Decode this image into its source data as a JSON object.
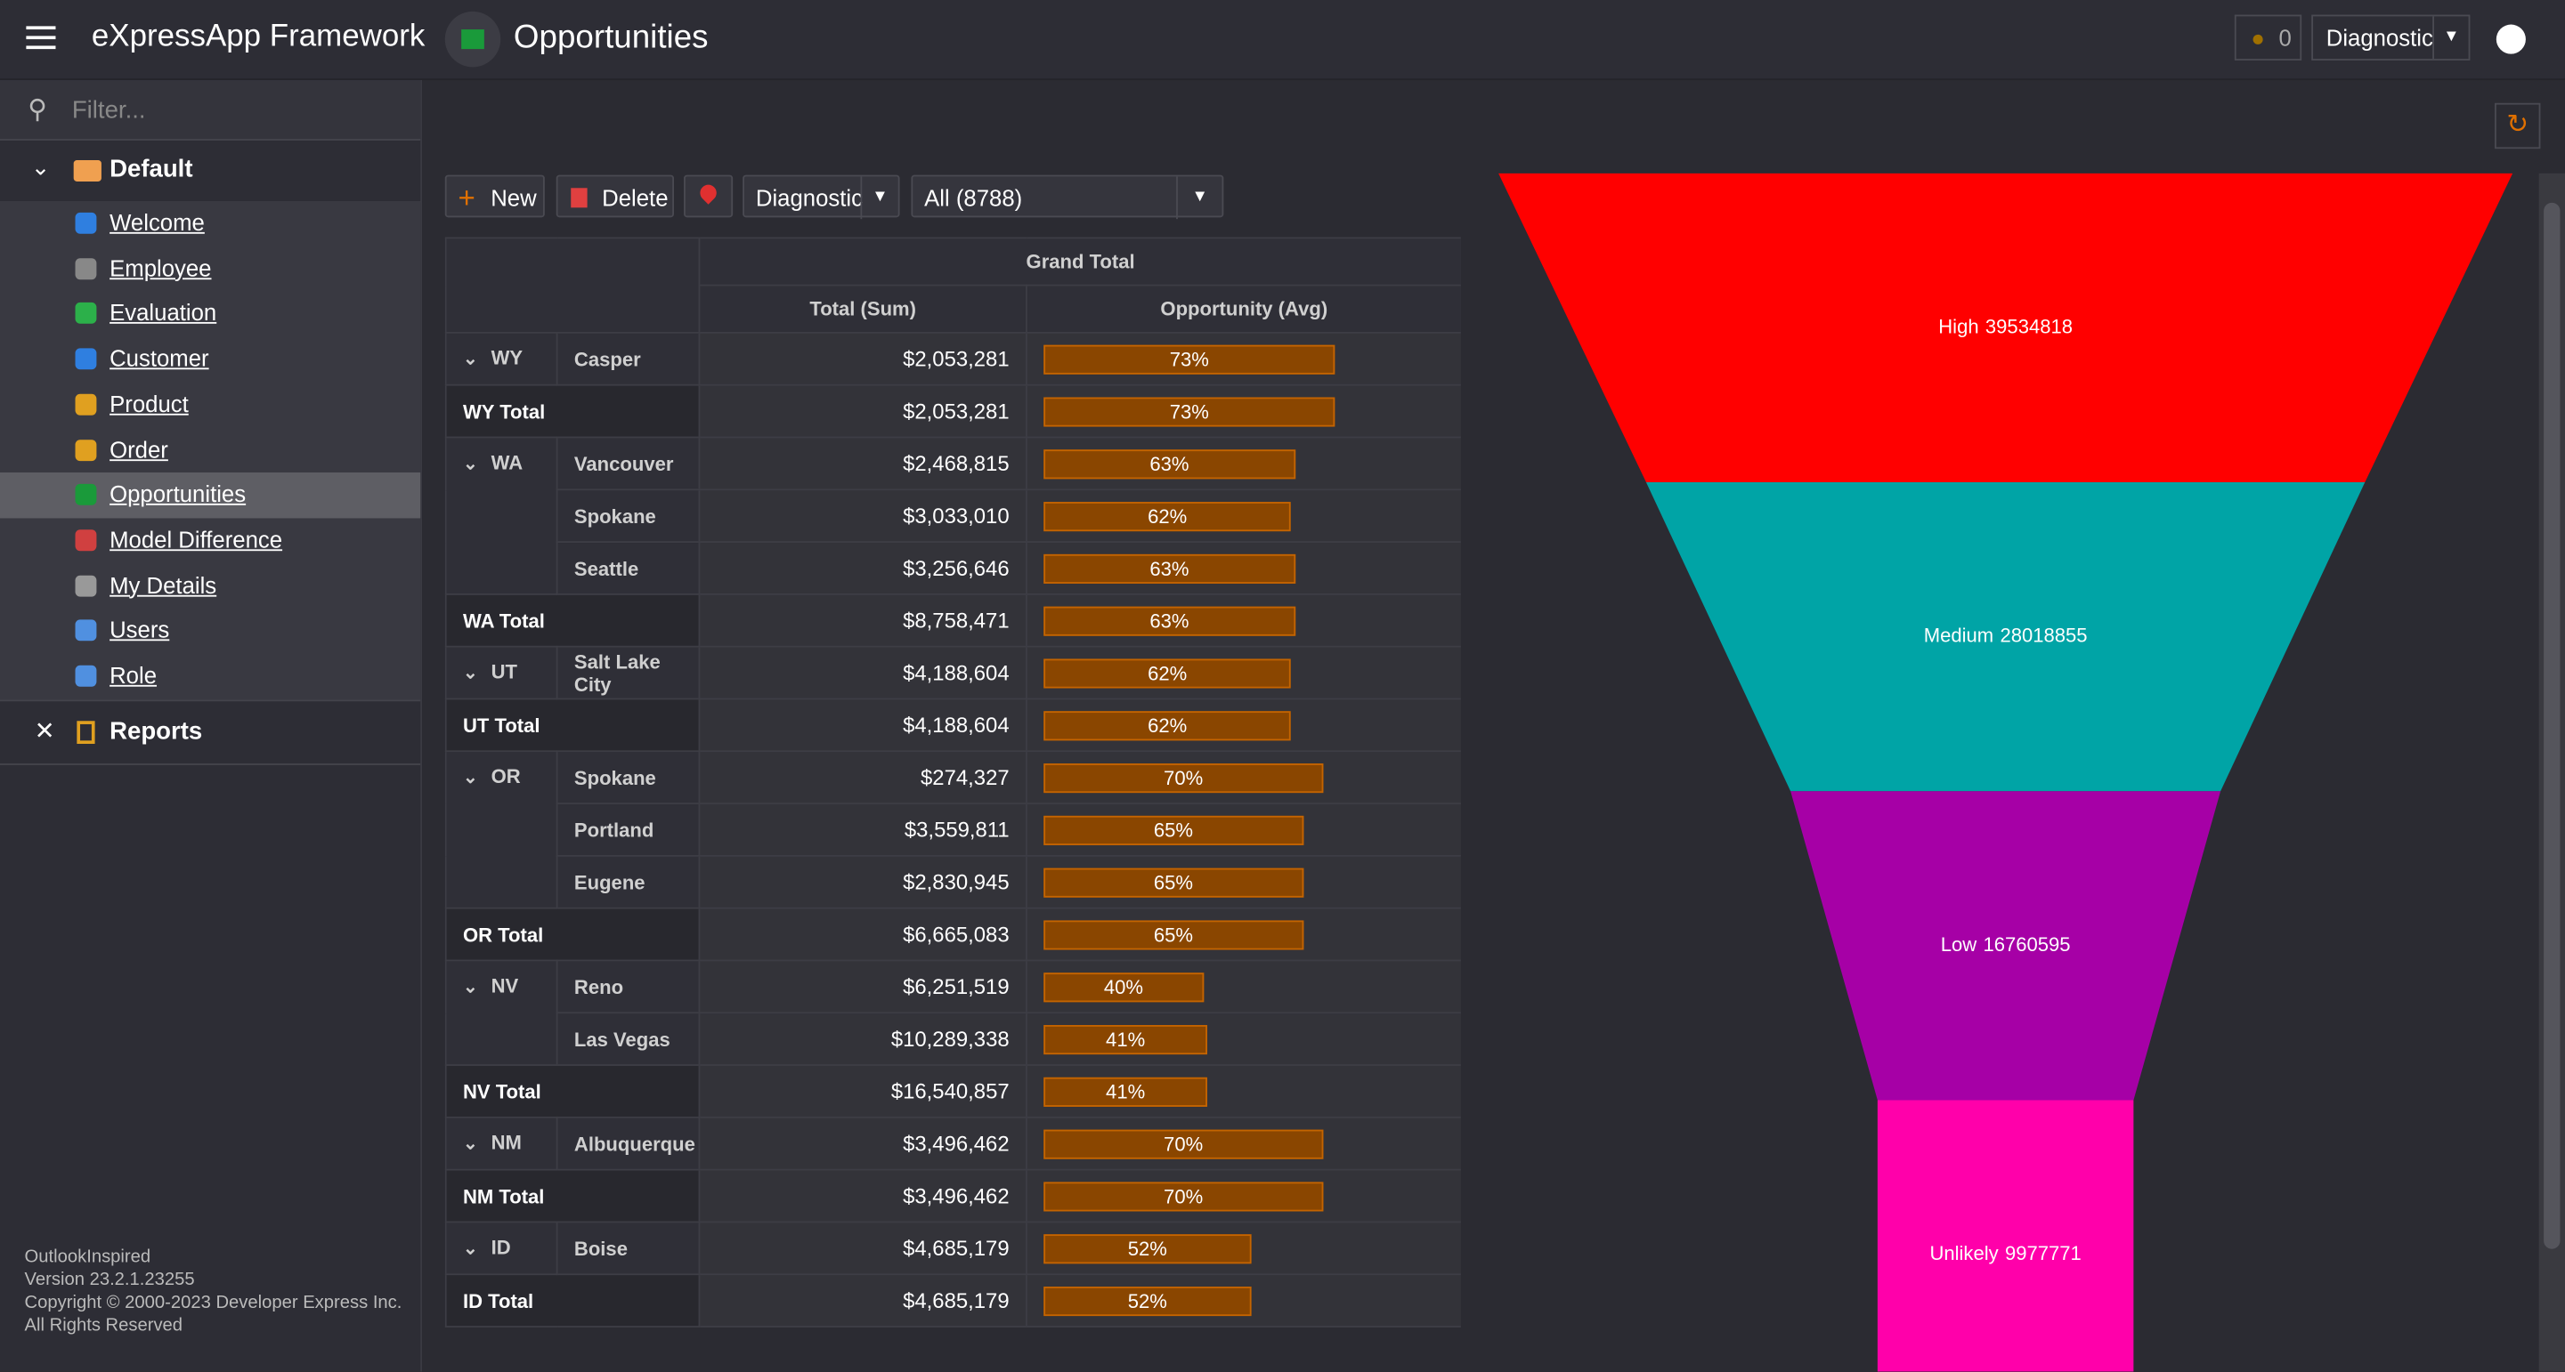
{
  "header": {
    "app_title": "eXpressApp Framework",
    "view_title": "Opportunities",
    "notifications": "0",
    "user_mode": "Diagnostic"
  },
  "sidebar": {
    "filter_placeholder": "Filter...",
    "group": "Default",
    "items": [
      "Welcome",
      "Employee",
      "Evaluation",
      "Customer",
      "Product",
      "Order",
      "Opportunities",
      "Model Difference",
      "My Details",
      "Users",
      "Role"
    ],
    "selected": 6,
    "group2": "Reports",
    "footer": [
      "OutlookInspired",
      "Version 23.2.1.23255",
      "Copyright © 2000-2023 Developer Express Inc.",
      "All Rights Reserved"
    ]
  },
  "toolbar": {
    "new": "New",
    "delete": "Delete",
    "mode": "Diagnostic",
    "filter": "All (8788)"
  },
  "table": {
    "grand_total": "Grand Total",
    "col_sum": "Total (Sum)",
    "col_avg": "Opportunity (Avg)",
    "groups": [
      {
        "state": "WY",
        "rows": [
          {
            "city": "Casper",
            "sum": "$2,053,281",
            "avg": {
              "value": 73,
              "label": "73%"
            }
          }
        ],
        "total": {
          "label": "WY Total",
          "sum": "$2,053,281",
          "avg": {
            "value": 73,
            "label": "73%"
          }
        }
      },
      {
        "state": "WA",
        "rows": [
          {
            "city": "Vancouver",
            "sum": "$2,468,815",
            "avg": {
              "value": 63,
              "label": "63%"
            }
          },
          {
            "city": "Spokane",
            "sum": "$3,033,010",
            "avg": {
              "value": 62,
              "label": "62%"
            }
          },
          {
            "city": "Seattle",
            "sum": "$3,256,646",
            "avg": {
              "value": 63,
              "label": "63%"
            }
          }
        ],
        "total": {
          "label": "WA Total",
          "sum": "$8,758,471",
          "avg": {
            "value": 63,
            "label": "63%"
          }
        }
      },
      {
        "state": "UT",
        "rows": [
          {
            "city": "Salt Lake City",
            "sum": "$4,188,604",
            "avg": {
              "value": 62,
              "label": "62%"
            }
          }
        ],
        "total": {
          "label": "UT Total",
          "sum": "$4,188,604",
          "avg": {
            "value": 62,
            "label": "62%"
          }
        }
      },
      {
        "state": "OR",
        "rows": [
          {
            "city": "Spokane",
            "sum": "$274,327",
            "avg": {
              "value": 70,
              "label": "70%"
            }
          },
          {
            "city": "Portland",
            "sum": "$3,559,811",
            "avg": {
              "value": 65,
              "label": "65%"
            }
          },
          {
            "city": "Eugene",
            "sum": "$2,830,945",
            "avg": {
              "value": 65,
              "label": "65%"
            }
          }
        ],
        "total": {
          "label": "OR Total",
          "sum": "$6,665,083",
          "avg": {
            "value": 65,
            "label": "65%"
          }
        }
      },
      {
        "state": "NV",
        "rows": [
          {
            "city": "Reno",
            "sum": "$6,251,519",
            "avg": {
              "value": 40,
              "label": "40%"
            }
          },
          {
            "city": "Las Vegas",
            "sum": "$10,289,338",
            "avg": {
              "value": 41,
              "label": "41%"
            }
          }
        ],
        "total": {
          "label": "NV Total",
          "sum": "$16,540,857",
          "avg": {
            "value": 41,
            "label": "41%"
          }
        }
      },
      {
        "state": "NM",
        "rows": [
          {
            "city": "Albuquerque",
            "sum": "$3,496,462",
            "avg": {
              "value": 70,
              "label": "70%"
            }
          }
        ],
        "total": {
          "label": "NM Total",
          "sum": "$3,496,462",
          "avg": {
            "value": 70,
            "label": "70%"
          }
        }
      },
      {
        "state": "ID",
        "rows": [
          {
            "city": "Boise",
            "sum": "$4,685,179",
            "avg": {
              "value": 52,
              "label": "52%"
            }
          }
        ],
        "total": {
          "label": "ID Total",
          "sum": "$4,685,179",
          "avg": {
            "value": 52,
            "label": "52%"
          }
        }
      }
    ]
  },
  "chart_data": {
    "type": "funnel",
    "categories": [
      "High",
      "Medium",
      "Low",
      "Unlikely"
    ],
    "values": [
      39534818,
      28018855,
      16760595,
      9977771
    ],
    "colors": [
      "#ff0000",
      "#00a4a6",
      "#a600a6",
      "#ff00aa"
    ]
  }
}
